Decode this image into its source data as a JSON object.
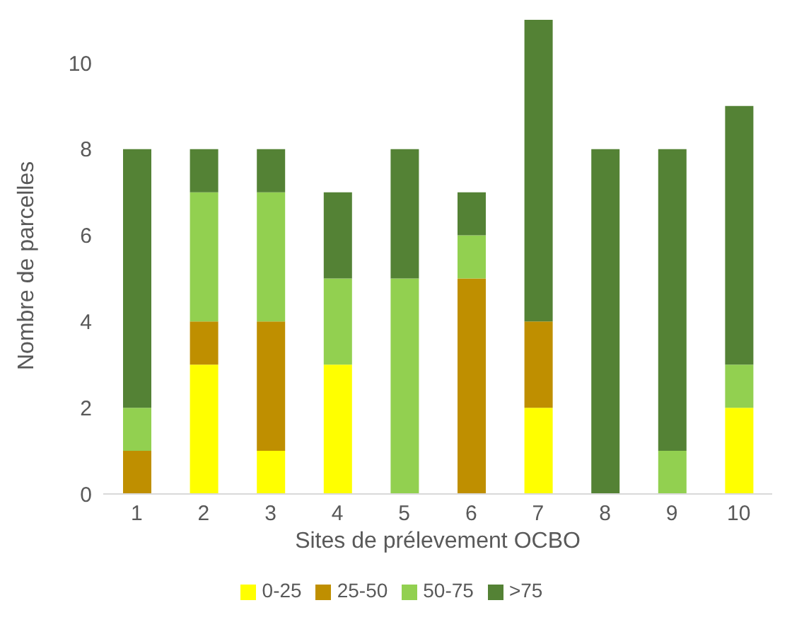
{
  "chart_data": {
    "type": "bar",
    "stacked": true,
    "xlabel": "Sites  de prélevement OCBO",
    "ylabel": "Nombre de parcelles",
    "categories": [
      "1",
      "2",
      "3",
      "4",
      "5",
      "6",
      "7",
      "8",
      "9",
      "10"
    ],
    "series": [
      {
        "name": "0-25",
        "color": "#ffff00",
        "values": [
          0,
          3,
          1,
          3,
          0,
          0,
          2,
          0,
          0,
          2
        ]
      },
      {
        "name": "25-50",
        "color": "#bf8f00",
        "values": [
          1,
          1,
          3,
          0,
          0,
          5,
          2,
          0,
          0,
          0
        ]
      },
      {
        "name": "50-75",
        "color": "#92d050",
        "values": [
          1,
          3,
          3,
          2,
          5,
          1,
          0,
          0,
          1,
          1
        ]
      },
      {
        "name": ">75",
        "color": "#548235",
        "values": [
          6,
          1,
          1,
          2,
          3,
          1,
          7,
          8,
          7,
          6
        ]
      }
    ],
    "ylim": [
      0,
      11
    ],
    "yticks": [
      0,
      2,
      4,
      6,
      8,
      10
    ],
    "grid": false,
    "legend": "bottom"
  }
}
